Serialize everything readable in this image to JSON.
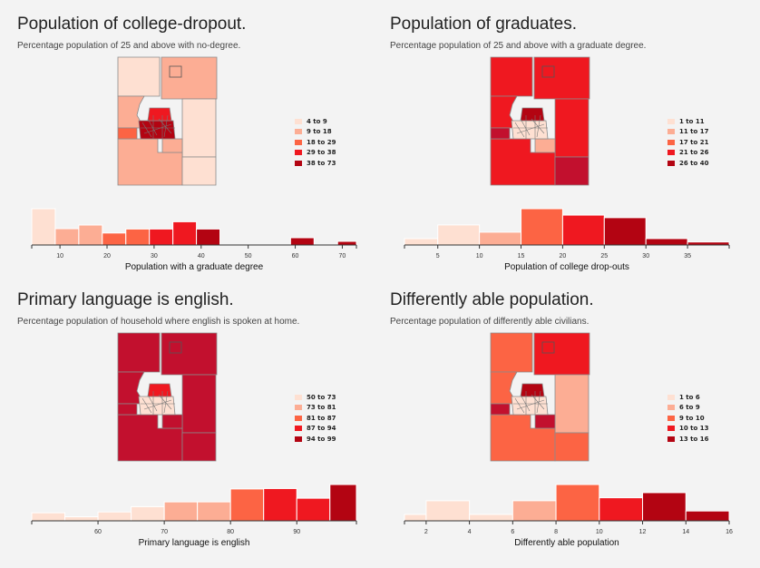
{
  "colors": {
    "scale": [
      "#fee0d2",
      "#fcad94",
      "#fc6444",
      "#ef1820",
      "#b30412"
    ],
    "district": "#c2102e"
  },
  "panels": [
    {
      "title": "Population of college-dropout.",
      "subtitle": "Percentage population of 25 and above with no-degree.",
      "legend": [
        "4 to 9",
        "9 to 18",
        "18 to 29",
        "29 to 38",
        "38 to 73"
      ],
      "map_fills": [
        "#fee0d2",
        "#fcad94",
        "#fcad94",
        "#fee0d2",
        "#fcad94",
        "#fcad94",
        "#fee0d2",
        "#fc6444",
        "#b30412",
        "#ef1820"
      ],
      "chart_data": {
        "type": "histogram",
        "xlabel": "Population with a graduate degree",
        "xlim": [
          4,
          73
        ],
        "xticks": [
          10,
          20,
          30,
          40,
          50,
          60,
          70
        ],
        "bins": [
          {
            "x0": 4,
            "x1": 9,
            "count": 10,
            "color": "#fee0d2"
          },
          {
            "x0": 9,
            "x1": 14,
            "count": 4.5,
            "color": "#fcad94"
          },
          {
            "x0": 14,
            "x1": 19,
            "count": 5.5,
            "color": "#fcad94"
          },
          {
            "x0": 19,
            "x1": 24,
            "count": 3.3,
            "color": "#fc6444"
          },
          {
            "x0": 24,
            "x1": 29,
            "count": 4.4,
            "color": "#fc6444"
          },
          {
            "x0": 29,
            "x1": 34,
            "count": 4.4,
            "color": "#ef1820"
          },
          {
            "x0": 34,
            "x1": 39,
            "count": 6.4,
            "color": "#ef1820"
          },
          {
            "x0": 39,
            "x1": 44,
            "count": 4.4,
            "color": "#b30412"
          },
          {
            "x0": 59,
            "x1": 64,
            "count": 2.0,
            "color": "#b30412"
          },
          {
            "x0": 69,
            "x1": 73,
            "count": 1.0,
            "color": "#b30412"
          }
        ]
      }
    },
    {
      "title": "Population of graduates.",
      "subtitle": "Percentage population of 25 and above with a graduate degree.",
      "legend": [
        "1 to 11",
        "11 to 17",
        "17 to 21",
        "21 to 26",
        "26 to 40"
      ],
      "map_fills": [
        "#ef1820",
        "#ef1820",
        "#ef1820",
        "#ef1820",
        "#ef1820",
        "#fcad94",
        "#c2102e",
        "#c2102e",
        "#fee0d2",
        "#b30412"
      ],
      "chart_data": {
        "type": "histogram",
        "xlabel": "Population of college drop-outs",
        "xlim": [
          1,
          40
        ],
        "xticks": [
          5,
          10,
          15,
          20,
          25,
          30,
          35
        ],
        "bins": [
          {
            "x0": 1,
            "x1": 5,
            "count": 1.5,
            "color": "#fee0d2"
          },
          {
            "x0": 5,
            "x1": 10,
            "count": 4.7,
            "color": "#fee0d2"
          },
          {
            "x0": 10,
            "x1": 15,
            "count": 3.0,
            "color": "#fcad94"
          },
          {
            "x0": 15,
            "x1": 20,
            "count": 8.5,
            "color": "#fc6444"
          },
          {
            "x0": 20,
            "x1": 25,
            "count": 7.0,
            "color": "#ef1820"
          },
          {
            "x0": 25,
            "x1": 30,
            "count": 6.4,
            "color": "#b30412"
          },
          {
            "x0": 30,
            "x1": 35,
            "count": 1.5,
            "color": "#b30412"
          },
          {
            "x0": 35,
            "x1": 40,
            "count": 0.7,
            "color": "#b30412"
          }
        ]
      }
    },
    {
      "title": "Primary language is english.",
      "subtitle": "Percentage population of household where english is spoken at home.",
      "legend": [
        "50 to 73",
        "73 to 81",
        "81 to 87",
        "87 to 94",
        "94 to 99"
      ],
      "map_fills": [
        "#c2102e",
        "#c2102e",
        "#c2102e",
        "#c2102e",
        "#c2102e",
        "#c2102e",
        "#c2102e",
        "#c2102e",
        "#fee0d2",
        "#ef1820"
      ],
      "chart_data": {
        "type": "histogram",
        "xlabel": "Primary language is english",
        "xlim": [
          50,
          99
        ],
        "xticks": [
          60,
          70,
          80,
          90
        ],
        "bins": [
          {
            "x0": 50,
            "x1": 55,
            "count": 2.0,
            "color": "#fee0d2"
          },
          {
            "x0": 55,
            "x1": 60,
            "count": 1.0,
            "color": "#fee0d2"
          },
          {
            "x0": 60,
            "x1": 65,
            "count": 2.2,
            "color": "#fee0d2"
          },
          {
            "x0": 65,
            "x1": 70,
            "count": 3.5,
            "color": "#fee0d2"
          },
          {
            "x0": 70,
            "x1": 75,
            "count": 4.7,
            "color": "#fcad94"
          },
          {
            "x0": 75,
            "x1": 80,
            "count": 4.7,
            "color": "#fcad94"
          },
          {
            "x0": 80,
            "x1": 85,
            "count": 7.9,
            "color": "#fc6444"
          },
          {
            "x0": 85,
            "x1": 90,
            "count": 8.0,
            "color": "#ef1820"
          },
          {
            "x0": 90,
            "x1": 95,
            "count": 5.6,
            "color": "#ef1820"
          },
          {
            "x0": 95,
            "x1": 99,
            "count": 9.0,
            "color": "#b30412"
          }
        ]
      }
    },
    {
      "title": "Differently able population.",
      "subtitle": "Percentage population of differently able civilians.",
      "legend": [
        "1 to 6",
        "6 to 9",
        "9 to 10",
        "10 to 13",
        "13 to 16"
      ],
      "map_fills": [
        "#fc6444",
        "#ef1820",
        "#fc6444",
        "#fcad94",
        "#fc6444",
        "#c2102e",
        "#fc6444",
        "#c2102e",
        "#fee0d2",
        "#b30412"
      ],
      "chart_data": {
        "type": "histogram",
        "xlabel": "Differently able population",
        "xlim": [
          1,
          16
        ],
        "xticks": [
          2,
          4,
          6,
          8,
          10,
          12,
          14,
          16
        ],
        "bins": [
          {
            "x0": 1,
            "x1": 2,
            "count": 1.5,
            "color": "#fee0d2"
          },
          {
            "x0": 2,
            "x1": 4,
            "count": 4.7,
            "color": "#fee0d2"
          },
          {
            "x0": 4,
            "x1": 6,
            "count": 1.5,
            "color": "#fee0d2"
          },
          {
            "x0": 6,
            "x1": 8,
            "count": 4.7,
            "color": "#fcad94"
          },
          {
            "x0": 8,
            "x1": 10,
            "count": 8.5,
            "color": "#fc6444"
          },
          {
            "x0": 10,
            "x1": 12,
            "count": 5.4,
            "color": "#ef1820"
          },
          {
            "x0": 12,
            "x1": 14,
            "count": 6.6,
            "color": "#b30412"
          },
          {
            "x0": 14,
            "x1": 16,
            "count": 2.3,
            "color": "#b30412"
          }
        ]
      }
    }
  ]
}
